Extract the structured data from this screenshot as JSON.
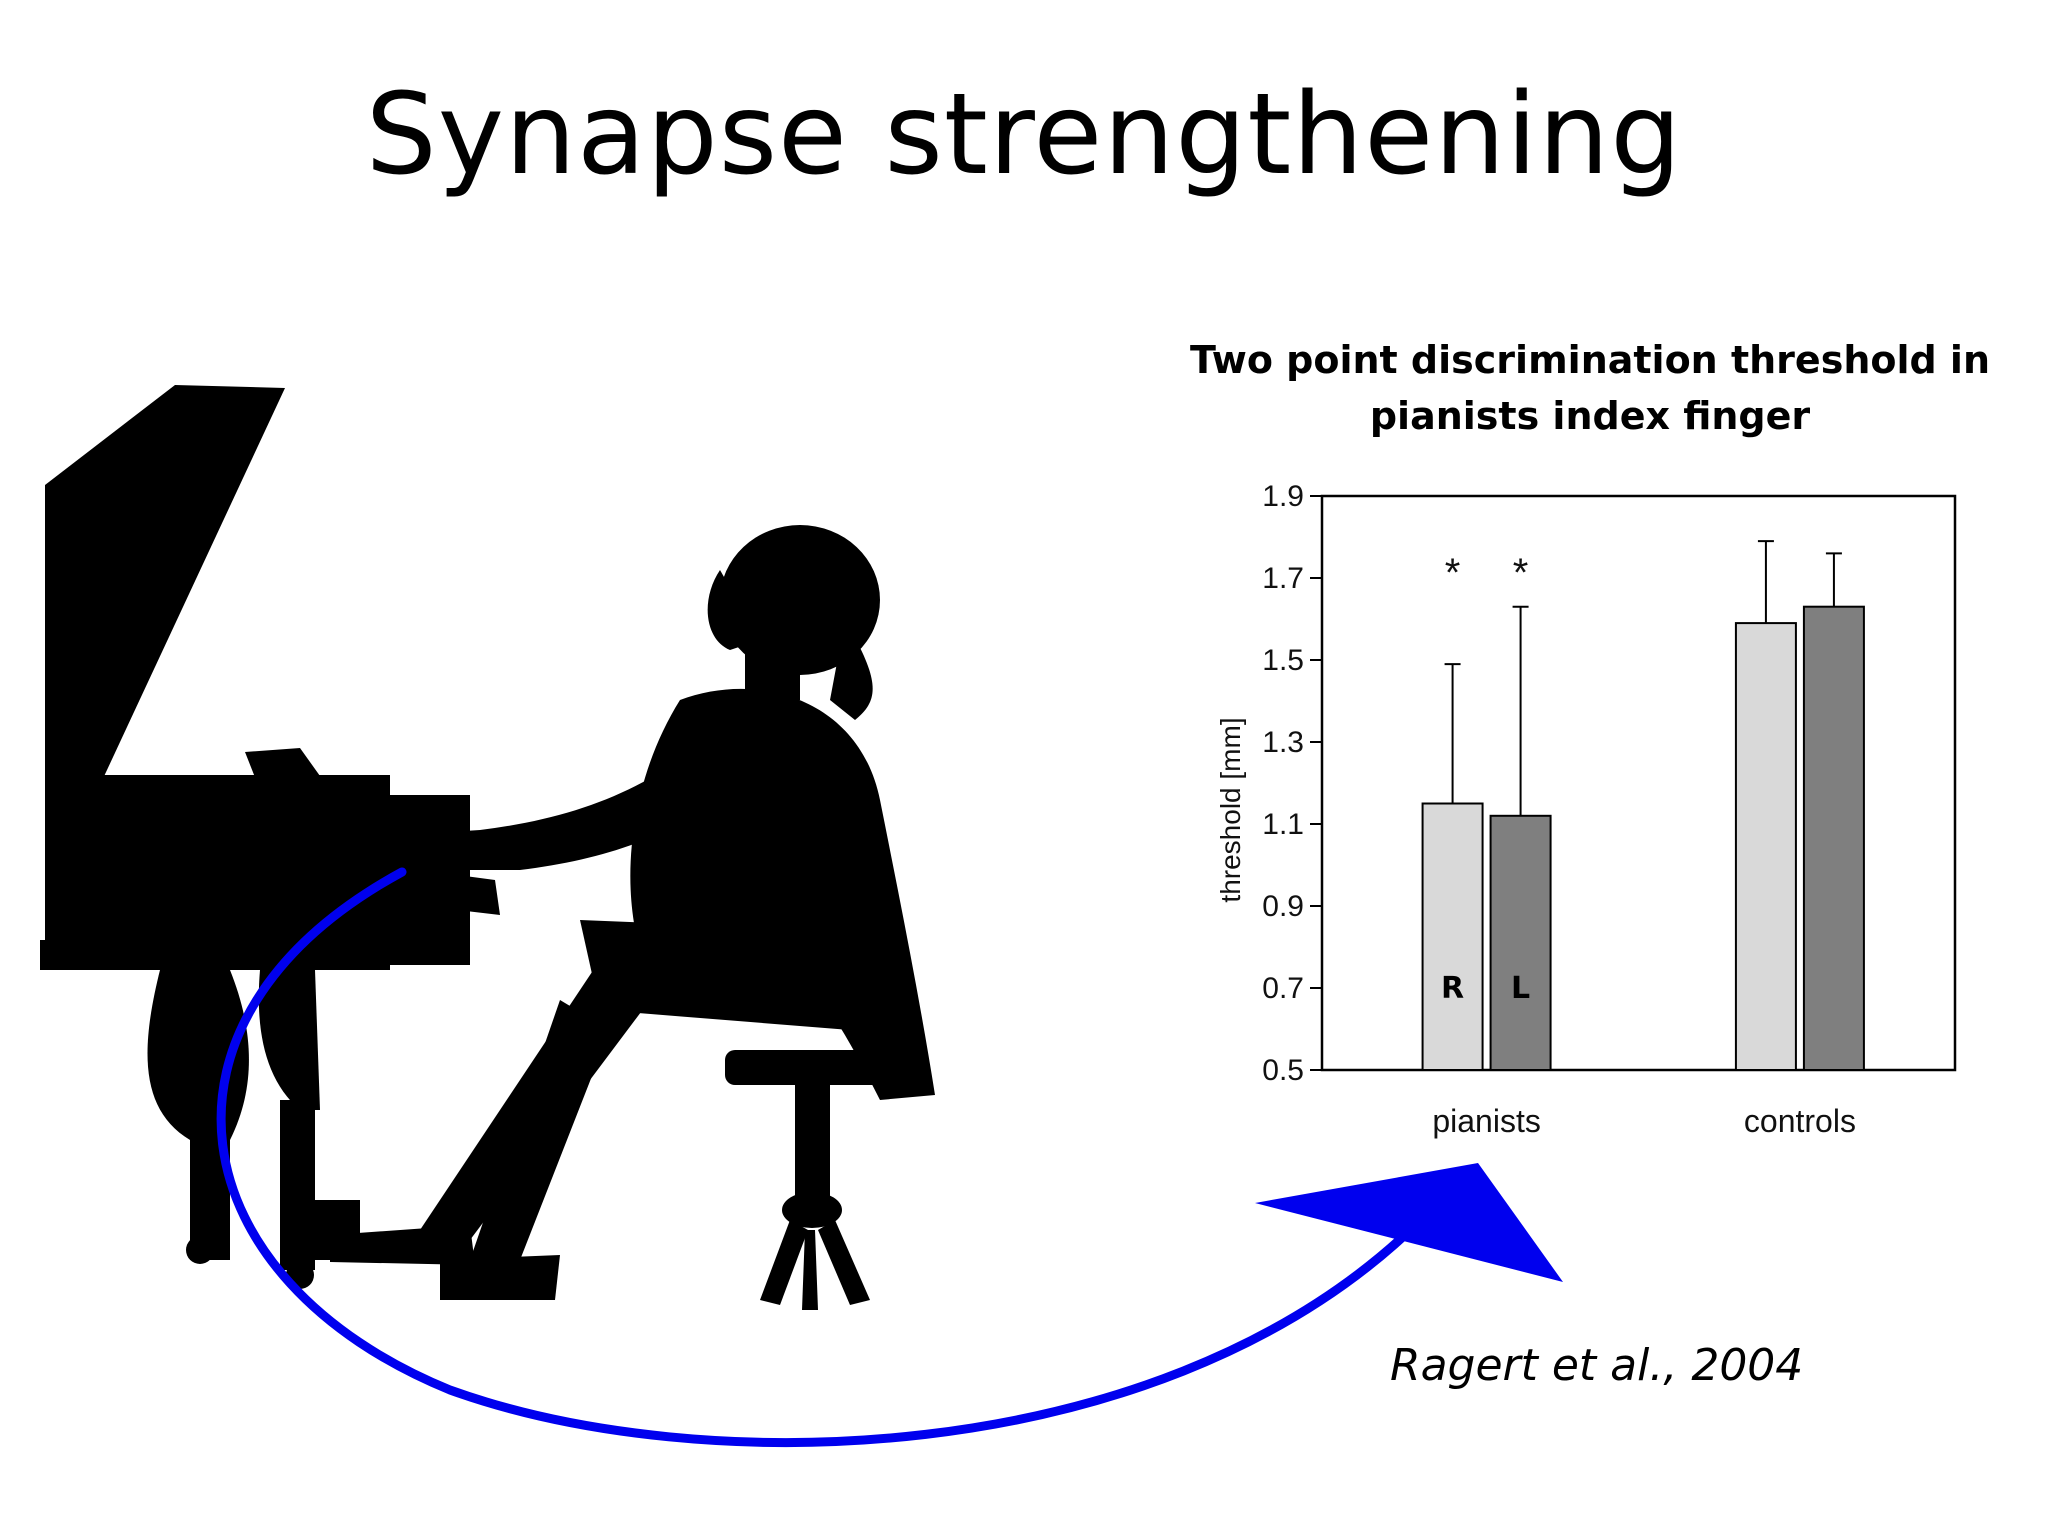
{
  "slide": {
    "title": "Synapse strengthening",
    "citation": "Ragert et al., 2004"
  },
  "chart_data": {
    "type": "bar",
    "title_lines": [
      "Two point discrimination threshold in",
      "pianists index finger"
    ],
    "ylabel": "threshold [mm]",
    "xlabel": "",
    "ylim": [
      0.5,
      1.9
    ],
    "yticks": [
      "1.9",
      "1.7",
      "1.5",
      "1.3",
      "1.1",
      "0.9",
      "0.7",
      "0.5"
    ],
    "categories": [
      "pianists",
      "controls"
    ],
    "series": [
      {
        "name": "R",
        "color": "#d9d9d9",
        "values": [
          1.15,
          1.59
        ],
        "error_upper": [
          1.49,
          1.79
        ],
        "significance": [
          "*",
          ""
        ]
      },
      {
        "name": "L",
        "color": "#7f7f7f",
        "values": [
          1.12,
          1.63
        ],
        "error_upper": [
          1.63,
          1.76
        ],
        "significance": [
          "*",
          ""
        ]
      }
    ],
    "bar_labels_shown_in": "pianists",
    "grid": false,
    "legend": "none"
  },
  "colors": {
    "arrow": "#0000ee",
    "silhouette": "#000000",
    "axis": "#000000"
  },
  "icons": [
    "piano-silhouette",
    "pianist-silhouette",
    "curved-arrow"
  ]
}
